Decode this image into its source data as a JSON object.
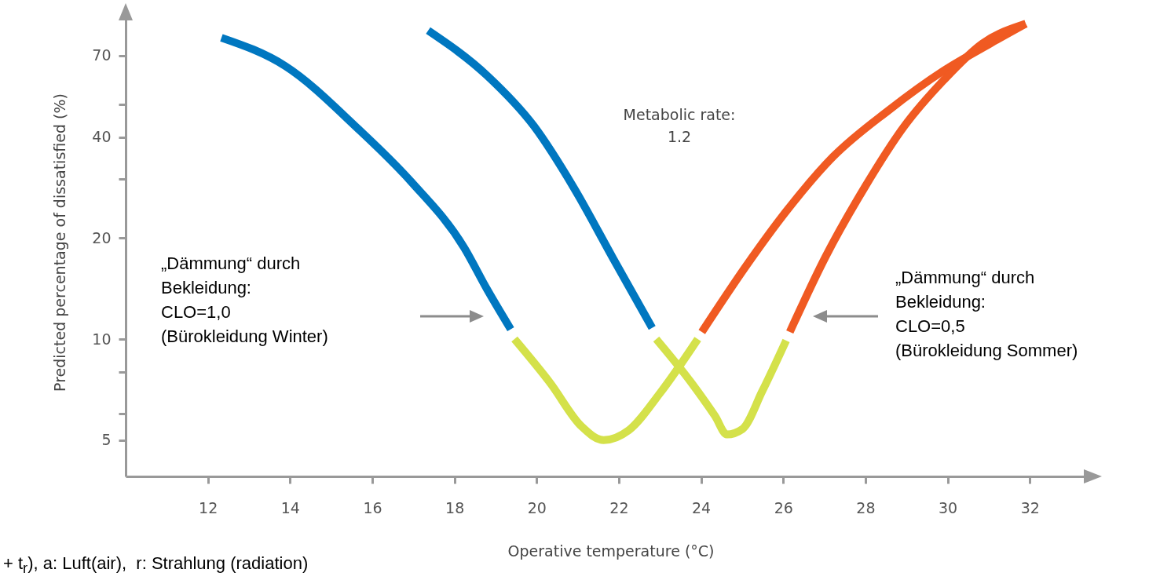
{
  "chart_data": {
    "type": "line",
    "xlabel": "Operative temperature (°C)",
    "ylabel": "Predicted percentage of dissatisfied (%)",
    "xlim": [
      10,
      33.6
    ],
    "ylim": [
      3.9,
      97
    ],
    "log": "y",
    "xticks": [
      12,
      14,
      16,
      18,
      20,
      22,
      24,
      26,
      28,
      30,
      32
    ],
    "yticks": [
      5,
      {
        "value": 6,
        "label": null
      },
      {
        "value": 8,
        "label": null
      },
      10,
      20,
      {
        "value": 30,
        "label": null
      },
      40,
      {
        "value": 50,
        "label": null
      },
      70
    ],
    "grid": false,
    "marker": "none",
    "line_style": "solid",
    "series": [
      {
        "color": "#0077c0",
        "x": [
          12.33,
          13.89,
          15.64,
          16.94,
          18.24,
          18.79,
          19.37
        ],
        "values": [
          79,
          65,
          42.5,
          29.5,
          18.7,
          14.1,
          10.7
        ]
      },
      {
        "color": "#d4e14a",
        "x": [
          19.46,
          20.33,
          21.09,
          21.63,
          22.24,
          23.0,
          23.92
        ],
        "values": [
          10,
          7.4,
          5.5,
          5.0,
          5.35,
          6.9,
          10
        ]
      },
      {
        "color": "#f05a22",
        "x": [
          24.02,
          25.11,
          26.07,
          27.22,
          28.56,
          29.9,
          31.04,
          31.9
        ],
        "values": [
          10.5,
          16.6,
          24,
          35,
          48,
          63,
          76,
          87
        ]
      },
      {
        "color": "#0077c0",
        "x": [
          17.36,
          18.79,
          19.94,
          20.9,
          21.86,
          22.81
        ],
        "values": [
          83,
          61,
          43,
          28.3,
          17.4,
          10.8
        ]
      },
      {
        "color": "#d4e14a",
        "x": [
          22.91,
          23.77,
          24.34,
          24.63,
          25.01,
          25.49,
          26.07
        ],
        "values": [
          10,
          7.4,
          5.9,
          5.2,
          5.4,
          7.0,
          9.9
        ]
      },
      {
        "color": "#f05a22",
        "x": [
          26.16,
          27.02,
          27.98,
          28.94,
          29.9,
          30.85,
          31.9
        ],
        "values": [
          10.5,
          17.5,
          28.3,
          43,
          59,
          76,
          87
        ]
      }
    ],
    "annotations": [
      "Metabolic rate:\n1.2",
      "„Dämmung“ durch\nBekleidung:\nCLO=1,0\n(Bürokleidung Winter)",
      "„Dämmung“ durch\nBekleidung:\nCLO=0,5\n(Bürokleidung Sommer)",
      "+ t$_{r}$), a: Luft(air),  r: Strahlung (radiation)"
    ]
  }
}
